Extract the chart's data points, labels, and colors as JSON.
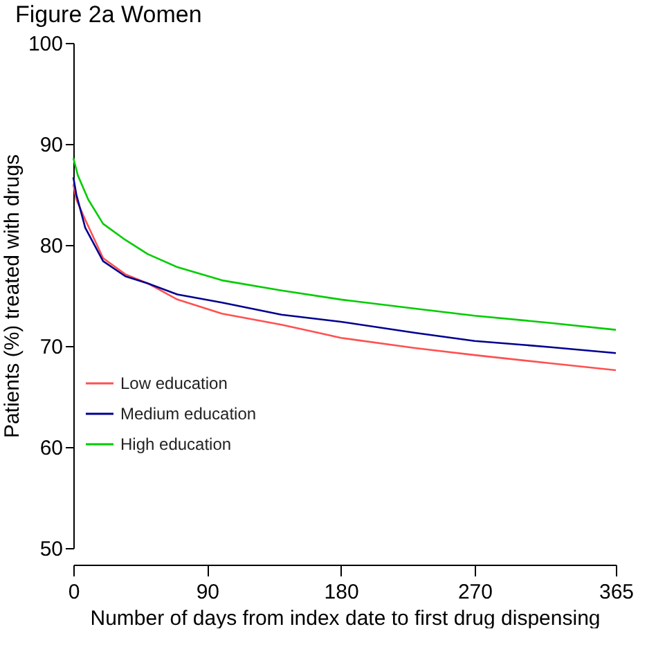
{
  "chart_data": {
    "type": "line",
    "title": "Figure 2a Women",
    "xlabel": "Number of days from index date to first drug dispensing",
    "ylabel": "Patients (%) treated with drugs",
    "xlim": [
      0,
      365
    ],
    "xticks": [
      0,
      90,
      180,
      270,
      365
    ],
    "ylim": [
      50,
      100
    ],
    "yticks": [
      50,
      60,
      70,
      80,
      90,
      100
    ],
    "grid": false,
    "legend": "left",
    "marker": "none",
    "line_style": "solid",
    "series": [
      {
        "name": "Low education",
        "color": "#ff5050",
        "x": [
          0,
          2,
          8,
          20,
          35,
          50,
          70,
          100,
          140,
          165,
          180,
          230,
          270,
          320,
          365
        ],
        "values": [
          86.0,
          84.5,
          82.5,
          78.7,
          77.1,
          76.2,
          74.6,
          73.2,
          72.1,
          71.3,
          70.8,
          69.8,
          69.1,
          68.3,
          67.6
        ]
      },
      {
        "name": "Medium education",
        "color": "#000090",
        "x": [
          0,
          2,
          8,
          20,
          35,
          50,
          70,
          100,
          140,
          180,
          230,
          270,
          320,
          365
        ],
        "values": [
          86.7,
          85.0,
          81.7,
          78.4,
          76.9,
          76.2,
          75.1,
          74.3,
          73.1,
          72.4,
          71.3,
          70.5,
          69.9,
          69.3
        ]
      },
      {
        "name": "High education",
        "color": "#00cc00",
        "x": [
          0,
          3,
          10,
          20,
          35,
          50,
          70,
          100,
          140,
          180,
          230,
          270,
          320,
          365
        ],
        "values": [
          88.6,
          86.9,
          84.5,
          82.1,
          80.5,
          79.1,
          77.8,
          76.5,
          75.5,
          74.6,
          73.7,
          73.0,
          72.3,
          71.6
        ]
      }
    ]
  }
}
